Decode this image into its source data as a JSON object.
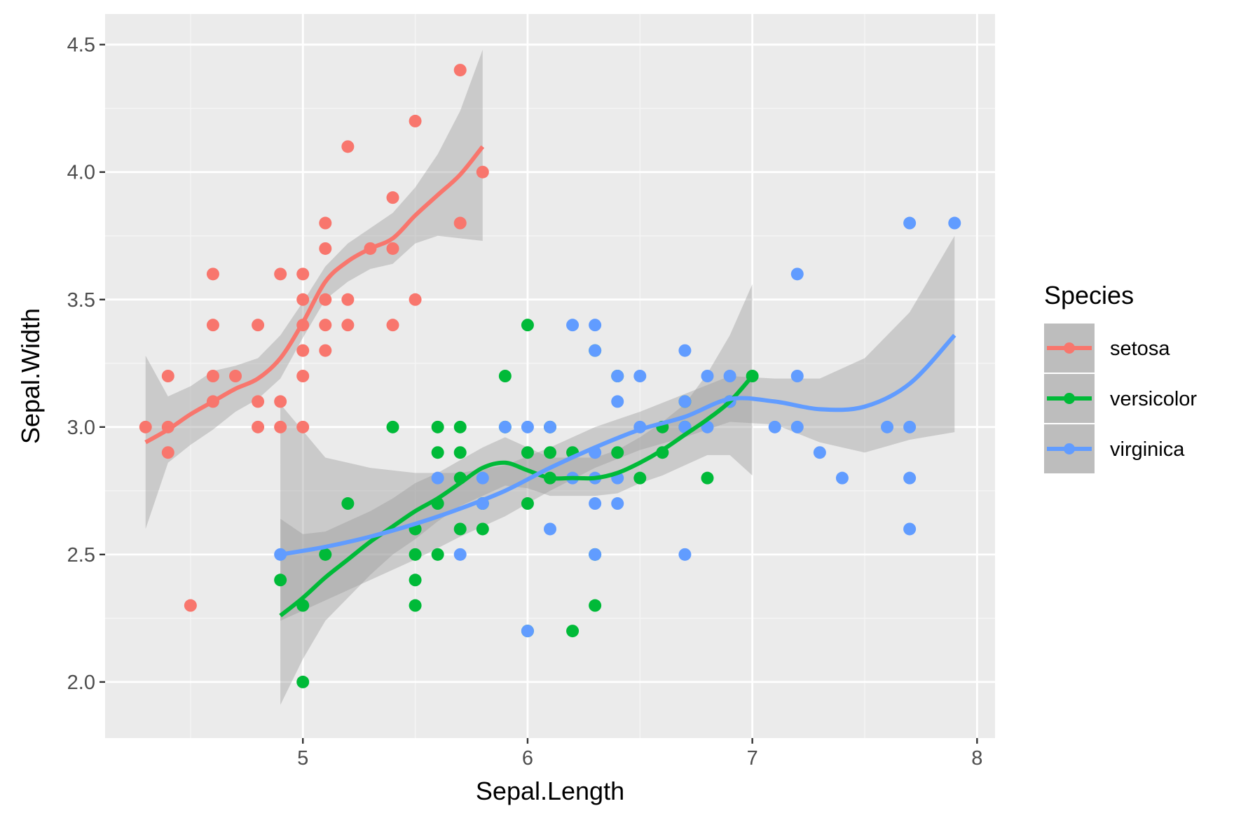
{
  "chart_data": {
    "type": "scatter",
    "xlabel": "Sepal.Length",
    "ylabel": "Sepal.Width",
    "xlim": [
      4.12,
      8.08
    ],
    "ylim": [
      1.78,
      4.62
    ],
    "x_ticks": [
      5,
      6,
      7,
      8
    ],
    "y_ticks": [
      2.0,
      2.5,
      3.0,
      3.5,
      4.0,
      4.5
    ],
    "x_tick_labels": [
      "5",
      "6",
      "7",
      "8"
    ],
    "y_tick_labels": [
      "2.0",
      "2.5",
      "3.0",
      "3.5",
      "4.0",
      "4.5"
    ],
    "grid": true,
    "smoother": "loess with confidence band",
    "legend": {
      "title": "Species",
      "position": "right"
    },
    "series": [
      {
        "name": "setosa",
        "color": "#F8766D",
        "points": [
          [
            4.3,
            3.0
          ],
          [
            4.4,
            3.2
          ],
          [
            4.4,
            3.0
          ],
          [
            4.4,
            2.9
          ],
          [
            4.5,
            2.3
          ],
          [
            4.6,
            3.6
          ],
          [
            4.6,
            3.4
          ],
          [
            4.6,
            3.2
          ],
          [
            4.6,
            3.1
          ],
          [
            4.7,
            3.2
          ],
          [
            4.8,
            3.4
          ],
          [
            4.8,
            3.1
          ],
          [
            4.8,
            3.0
          ],
          [
            4.9,
            3.6
          ],
          [
            4.9,
            3.1
          ],
          [
            4.9,
            3.0
          ],
          [
            5.0,
            3.6
          ],
          [
            5.0,
            3.5
          ],
          [
            5.0,
            3.4
          ],
          [
            5.0,
            3.3
          ],
          [
            5.0,
            3.2
          ],
          [
            5.0,
            3.0
          ],
          [
            5.1,
            3.8
          ],
          [
            5.1,
            3.7
          ],
          [
            5.1,
            3.5
          ],
          [
            5.1,
            3.4
          ],
          [
            5.1,
            3.3
          ],
          [
            5.2,
            4.1
          ],
          [
            5.2,
            3.5
          ],
          [
            5.2,
            3.4
          ],
          [
            5.3,
            3.7
          ],
          [
            5.4,
            3.9
          ],
          [
            5.4,
            3.7
          ],
          [
            5.4,
            3.4
          ],
          [
            5.5,
            4.2
          ],
          [
            5.5,
            3.5
          ],
          [
            5.7,
            4.4
          ],
          [
            5.7,
            3.8
          ],
          [
            5.8,
            4.0
          ]
        ],
        "smooth": [
          [
            4.3,
            2.94
          ],
          [
            4.4,
            2.99
          ],
          [
            4.5,
            3.05
          ],
          [
            4.6,
            3.1
          ],
          [
            4.7,
            3.15
          ],
          [
            4.8,
            3.19
          ],
          [
            4.9,
            3.27
          ],
          [
            5.0,
            3.41
          ],
          [
            5.1,
            3.57
          ],
          [
            5.2,
            3.65
          ],
          [
            5.3,
            3.7
          ],
          [
            5.4,
            3.74
          ],
          [
            5.5,
            3.83
          ],
          [
            5.6,
            3.91
          ],
          [
            5.7,
            3.99
          ],
          [
            5.8,
            4.1
          ]
        ],
        "ci_low": [
          2.6,
          2.86,
          2.93,
          2.99,
          3.06,
          3.11,
          3.19,
          3.35,
          3.5,
          3.57,
          3.62,
          3.64,
          3.72,
          3.75,
          3.74,
          3.73
        ],
        "ci_high": [
          3.28,
          3.12,
          3.16,
          3.22,
          3.24,
          3.27,
          3.36,
          3.49,
          3.63,
          3.72,
          3.78,
          3.84,
          3.94,
          4.07,
          4.24,
          4.48
        ]
      },
      {
        "name": "versicolor",
        "color": "#00BA38",
        "points": [
          [
            4.9,
            2.4
          ],
          [
            5.0,
            2.3
          ],
          [
            5.0,
            2.0
          ],
          [
            5.1,
            2.5
          ],
          [
            5.2,
            2.7
          ],
          [
            5.4,
            3.0
          ],
          [
            5.5,
            2.6
          ],
          [
            5.5,
            2.5
          ],
          [
            5.5,
            2.4
          ],
          [
            5.5,
            2.3
          ],
          [
            5.6,
            3.0
          ],
          [
            5.6,
            2.9
          ],
          [
            5.6,
            2.7
          ],
          [
            5.6,
            2.5
          ],
          [
            5.7,
            3.0
          ],
          [
            5.7,
            2.9
          ],
          [
            5.7,
            2.8
          ],
          [
            5.7,
            2.6
          ],
          [
            5.8,
            2.7
          ],
          [
            5.8,
            2.6
          ],
          [
            5.9,
            3.2
          ],
          [
            5.9,
            3.0
          ],
          [
            6.0,
            3.4
          ],
          [
            6.0,
            2.9
          ],
          [
            6.0,
            2.7
          ],
          [
            6.0,
            2.2
          ],
          [
            6.1,
            3.0
          ],
          [
            6.1,
            2.9
          ],
          [
            6.1,
            2.8
          ],
          [
            6.2,
            2.9
          ],
          [
            6.2,
            2.2
          ],
          [
            6.3,
            3.3
          ],
          [
            6.3,
            2.5
          ],
          [
            6.3,
            2.3
          ],
          [
            6.4,
            3.2
          ],
          [
            6.4,
            2.9
          ],
          [
            6.5,
            2.8
          ],
          [
            6.6,
            3.0
          ],
          [
            6.6,
            2.9
          ],
          [
            6.7,
            3.1
          ],
          [
            6.7,
            3.0
          ],
          [
            6.8,
            2.8
          ],
          [
            6.9,
            3.1
          ],
          [
            7.0,
            3.2
          ]
        ],
        "smooth": [
          [
            4.9,
            2.26
          ],
          [
            5.0,
            2.33
          ],
          [
            5.1,
            2.41
          ],
          [
            5.2,
            2.48
          ],
          [
            5.3,
            2.55
          ],
          [
            5.4,
            2.61
          ],
          [
            5.5,
            2.67
          ],
          [
            5.6,
            2.72
          ],
          [
            5.7,
            2.78
          ],
          [
            5.8,
            2.84
          ],
          [
            5.9,
            2.86
          ],
          [
            6.0,
            2.83
          ],
          [
            6.1,
            2.8
          ],
          [
            6.2,
            2.8
          ],
          [
            6.3,
            2.8
          ],
          [
            6.4,
            2.82
          ],
          [
            6.5,
            2.86
          ],
          [
            6.6,
            2.91
          ],
          [
            6.7,
            2.97
          ],
          [
            6.8,
            3.03
          ],
          [
            6.9,
            3.1
          ],
          [
            7.0,
            3.2
          ]
        ],
        "ci_low": [
          1.91,
          2.09,
          2.24,
          2.33,
          2.42,
          2.5,
          2.56,
          2.63,
          2.69,
          2.73,
          2.77,
          2.76,
          2.73,
          2.73,
          2.73,
          2.74,
          2.78,
          2.81,
          2.85,
          2.89,
          2.89,
          2.81
        ],
        "ci_high": [
          2.64,
          2.58,
          2.59,
          2.63,
          2.67,
          2.72,
          2.78,
          2.82,
          2.87,
          2.92,
          2.96,
          2.92,
          2.88,
          2.88,
          2.88,
          2.91,
          2.96,
          3.02,
          3.09,
          3.21,
          3.36,
          3.56
        ]
      },
      {
        "name": "virginica",
        "color": "#619CFF",
        "points": [
          [
            4.9,
            2.5
          ],
          [
            5.6,
            2.8
          ],
          [
            5.7,
            2.5
          ],
          [
            5.8,
            2.8
          ],
          [
            5.8,
            2.7
          ],
          [
            5.9,
            3.0
          ],
          [
            6.0,
            3.0
          ],
          [
            6.0,
            2.2
          ],
          [
            6.1,
            3.0
          ],
          [
            6.1,
            2.6
          ],
          [
            6.2,
            3.4
          ],
          [
            6.2,
            2.8
          ],
          [
            6.3,
            3.4
          ],
          [
            6.3,
            3.3
          ],
          [
            6.3,
            2.9
          ],
          [
            6.3,
            2.8
          ],
          [
            6.3,
            2.7
          ],
          [
            6.3,
            2.5
          ],
          [
            6.4,
            3.2
          ],
          [
            6.4,
            3.1
          ],
          [
            6.4,
            2.8
          ],
          [
            6.4,
            2.7
          ],
          [
            6.5,
            3.2
          ],
          [
            6.5,
            3.0
          ],
          [
            6.7,
            3.3
          ],
          [
            6.7,
            3.1
          ],
          [
            6.7,
            3.0
          ],
          [
            6.7,
            2.5
          ],
          [
            6.8,
            3.2
          ],
          [
            6.8,
            3.0
          ],
          [
            6.9,
            3.2
          ],
          [
            6.9,
            3.1
          ],
          [
            7.1,
            3.0
          ],
          [
            7.2,
            3.6
          ],
          [
            7.2,
            3.2
          ],
          [
            7.2,
            3.0
          ],
          [
            7.3,
            2.9
          ],
          [
            7.4,
            2.8
          ],
          [
            7.6,
            3.0
          ],
          [
            7.7,
            3.8
          ],
          [
            7.7,
            3.0
          ],
          [
            7.7,
            2.8
          ],
          [
            7.7,
            2.6
          ],
          [
            7.9,
            3.8
          ]
        ],
        "smooth": [
          [
            4.9,
            2.5
          ],
          [
            5.1,
            2.53
          ],
          [
            5.3,
            2.57
          ],
          [
            5.5,
            2.62
          ],
          [
            5.7,
            2.68
          ],
          [
            5.9,
            2.75
          ],
          [
            6.1,
            2.84
          ],
          [
            6.3,
            2.92
          ],
          [
            6.5,
            2.99
          ],
          [
            6.7,
            3.04
          ],
          [
            6.9,
            3.11
          ],
          [
            7.1,
            3.1
          ],
          [
            7.3,
            3.07
          ],
          [
            7.5,
            3.08
          ],
          [
            7.7,
            3.17
          ],
          [
            7.9,
            3.36
          ]
        ],
        "ci_low": [
          2.24,
          2.32,
          2.4,
          2.48,
          2.57,
          2.65,
          2.75,
          2.84,
          2.91,
          2.96,
          3.02,
          3.01,
          2.94,
          2.9,
          2.95,
          2.98
        ],
        "ci_high": [
          3.09,
          2.88,
          2.84,
          2.82,
          2.82,
          2.85,
          2.92,
          3.0,
          3.06,
          3.13,
          3.2,
          3.19,
          3.19,
          3.27,
          3.45,
          3.75
        ]
      }
    ]
  }
}
